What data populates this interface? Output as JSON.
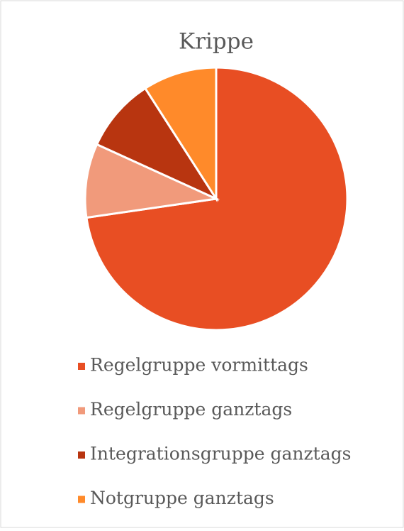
{
  "chart_data": {
    "type": "pie",
    "title": "Krippe",
    "categories": [
      "Regelgruppe vormittags",
      "Regelgruppe ganztags",
      "Integrationsgruppe ganztags",
      "Notgruppe ganztags"
    ],
    "values": [
      72.7,
      9.1,
      9.1,
      9.1
    ],
    "colors": [
      "#e84e23",
      "#f19a7b",
      "#b83510",
      "#ff8a2a"
    ],
    "legend": "bottom"
  }
}
